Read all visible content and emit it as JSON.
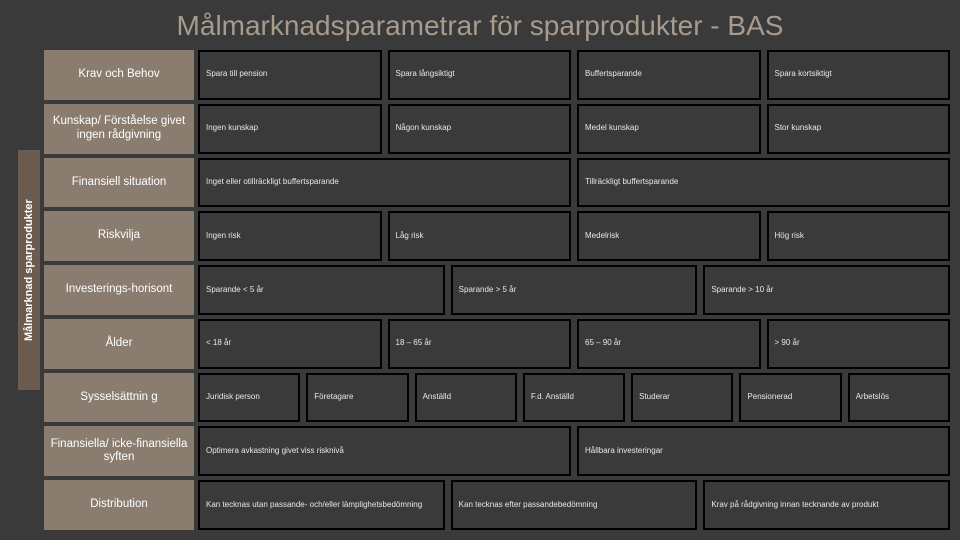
{
  "title": "Målmarknadsparametrar för sparprodukter - BAS",
  "vlabel": "Målmarknad sparprodukter",
  "colors": {
    "background": "#3a3a3a",
    "title_color": "#a89a8c",
    "vlabel_bg": "#6b5c4f",
    "rowlabel_bg": "#8a7d70",
    "cell_border": "#000000",
    "cell_text": "#e8e8e8",
    "label_text": "#ffffff"
  },
  "rows": [
    {
      "label": "Krav och Behov",
      "cells": [
        "Spara till pension",
        "Spara långsiktigt",
        "Buffertsparande",
        "Spara kortsiktigt"
      ]
    },
    {
      "label": "Kunskap/ Förståelse givet ingen rådgivning",
      "cells": [
        "Ingen kunskap",
        "Någon kunskap",
        "Medel kunskap",
        "Stor kunskap"
      ]
    },
    {
      "label": "Finansiell situation",
      "cells": [
        "Inget eller otillräckligt buffertsparande",
        "Tillräckligt buffertsparande"
      ]
    },
    {
      "label": "Riskvilja",
      "cells": [
        "Ingen risk",
        "Låg risk",
        "Medelrisk",
        "Hög risk"
      ]
    },
    {
      "label": "Investerings-horisont",
      "cells": [
        "Sparande < 5 år",
        "Sparande > 5 år",
        "Sparande > 10 år"
      ]
    },
    {
      "label": "Ålder",
      "cells": [
        "< 18 år",
        "18 – 65 år",
        "65 – 90 år",
        "> 90 år"
      ]
    },
    {
      "label": "Sysselsättnin g",
      "cells": [
        "Juridisk person",
        "Företagare",
        "Anställd",
        "F.d. Anställd",
        "Studerar",
        "Pensionerad",
        "Arbetslös"
      ]
    },
    {
      "label": "Finansiella/ icke-finansiella syften",
      "cells": [
        "Optimera avkastning givet viss risknivå",
        "Hållbara investeringar"
      ]
    },
    {
      "label": "Distribution",
      "cells": [
        "Kan tecknas utan passande- och/eller lämplighetsbedömning",
        "Kan tecknas efter passandebedömning",
        "Krav på rådgivning innan tecknande av produkt"
      ]
    }
  ]
}
